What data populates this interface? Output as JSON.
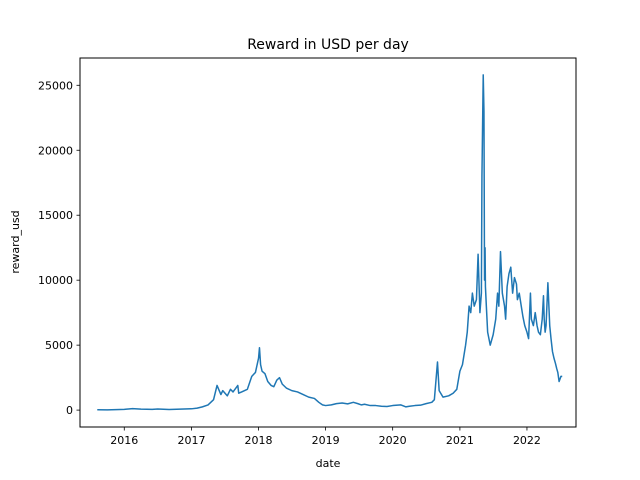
{
  "chart_data": {
    "type": "line",
    "title": "Reward in USD per day",
    "xlabel": "date",
    "ylabel": "reward_usd",
    "xlim": [
      "2015-05-05",
      "2022-09-25"
    ],
    "ylim": [
      -1300,
      27100
    ],
    "xticks": [
      "2016",
      "2017",
      "2018",
      "2019",
      "2020",
      "2021",
      "2022"
    ],
    "yticks": [
      0,
      5000,
      10000,
      15000,
      20000,
      25000
    ],
    "grid": false,
    "color": "#1f77b4",
    "series": [
      {
        "x": [
          "2015-08-07",
          "2015-10-01",
          "2016-01-01",
          "2016-02-15",
          "2016-04-01",
          "2016-06-01",
          "2016-07-01",
          "2016-09-01",
          "2016-11-01",
          "2017-01-01",
          "2017-02-01",
          "2017-03-01",
          "2017-04-01",
          "2017-05-01",
          "2017-05-20",
          "2017-06-10",
          "2017-06-20",
          "2017-07-15",
          "2017-08-01",
          "2017-08-15",
          "2017-09-10",
          "2017-09-15",
          "2017-10-01",
          "2017-11-01",
          "2017-11-25",
          "2017-12-15",
          "2018-01-01",
          "2018-01-06",
          "2018-01-12",
          "2018-01-20",
          "2018-02-05",
          "2018-02-20",
          "2018-03-10",
          "2018-03-25",
          "2018-04-10",
          "2018-04-25",
          "2018-05-10",
          "2018-06-01",
          "2018-07-01",
          "2018-08-01",
          "2018-09-01",
          "2018-10-01",
          "2018-11-01",
          "2018-11-25",
          "2018-12-15",
          "2019-01-01",
          "2019-02-01",
          "2019-03-01",
          "2019-04-01",
          "2019-05-01",
          "2019-06-01",
          "2019-06-25",
          "2019-07-15",
          "2019-08-01",
          "2019-09-01",
          "2019-10-01",
          "2019-11-01",
          "2019-12-01",
          "2020-01-01",
          "2020-02-15",
          "2020-03-12",
          "2020-04-01",
          "2020-05-01",
          "2020-06-01",
          "2020-07-01",
          "2020-08-01",
          "2020-08-15",
          "2020-09-01",
          "2020-09-10",
          "2020-10-01",
          "2020-11-01",
          "2020-11-25",
          "2020-12-15",
          "2021-01-01",
          "2021-01-15",
          "2021-02-01",
          "2021-02-10",
          "2021-02-20",
          "2021-03-01",
          "2021-03-10",
          "2021-03-20",
          "2021-04-01",
          "2021-04-10",
          "2021-04-20",
          "2021-04-28",
          "2021-05-01",
          "2021-05-08",
          "2021-05-12",
          "2021-05-15",
          "2021-05-18",
          "2021-05-20",
          "2021-05-25",
          "2021-06-01",
          "2021-06-15",
          "2021-07-01",
          "2021-07-15",
          "2021-07-25",
          "2021-08-01",
          "2021-08-10",
          "2021-08-20",
          "2021-09-01",
          "2021-09-07",
          "2021-09-15",
          "2021-09-25",
          "2021-10-05",
          "2021-10-15",
          "2021-10-25",
          "2021-11-05",
          "2021-11-10",
          "2021-11-20",
          "2021-12-01",
          "2021-12-10",
          "2021-12-20",
          "2022-01-01",
          "2022-01-10",
          "2022-01-20",
          "2022-01-25",
          "2022-02-05",
          "2022-02-15",
          "2022-02-25",
          "2022-03-05",
          "2022-03-15",
          "2022-03-25",
          "2022-04-01",
          "2022-04-05",
          "2022-04-10",
          "2022-04-15",
          "2022-04-25",
          "2022-05-05",
          "2022-05-12",
          "2022-05-20",
          "2022-05-28",
          "2022-06-05",
          "2022-06-12",
          "2022-06-18",
          "2022-06-25",
          "2022-07-05",
          "2022-07-12"
        ],
        "y": [
          30,
          20,
          60,
          110,
          80,
          60,
          90,
          50,
          80,
          100,
          150,
          250,
          400,
          800,
          1900,
          1200,
          1500,
          1100,
          1600,
          1400,
          1900,
          1300,
          1400,
          1600,
          2600,
          2900,
          4000,
          4800,
          3500,
          3000,
          2800,
          2200,
          1900,
          1800,
          2300,
          2500,
          2000,
          1700,
          1500,
          1400,
          1200,
          1000,
          900,
          600,
          400,
          350,
          400,
          500,
          550,
          480,
          600,
          500,
          400,
          450,
          350,
          350,
          300,
          280,
          350,
          400,
          250,
          300,
          350,
          380,
          500,
          600,
          800,
          3700,
          1500,
          1000,
          1100,
          1300,
          1600,
          3000,
          3500,
          5000,
          6000,
          8000,
          7500,
          9000,
          8000,
          8500,
          12000,
          7500,
          9000,
          18000,
          25800,
          23000,
          10000,
          12500,
          9500,
          8000,
          6000,
          5000,
          5800,
          7000,
          9000,
          8000,
          12200,
          9000,
          8000,
          7000,
          9500,
          10500,
          11000,
          9000,
          10200,
          9700,
          8500,
          9000,
          8000,
          7200,
          6500,
          6000,
          5500,
          9000,
          7000,
          6500,
          7500,
          6500,
          6000,
          5800,
          7000,
          8800,
          7000,
          6000,
          6500,
          9800,
          6500,
          5500,
          4500,
          4000,
          3600,
          3200,
          2900,
          2200,
          2600,
          2600
        ]
      }
    ]
  }
}
